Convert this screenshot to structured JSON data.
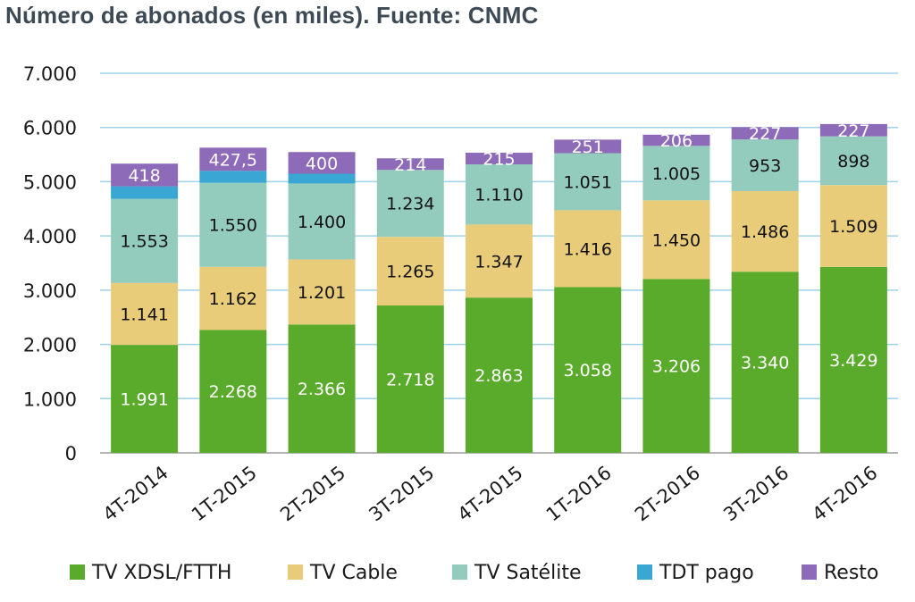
{
  "title": "Número de abonados (en miles). Fuente: CNMC",
  "chart_data": {
    "type": "bar",
    "stacked": true,
    "title": "Número de abonados (en miles). Fuente: CNMC",
    "xlabel": "",
    "ylabel": "",
    "ylim": [
      0,
      7000
    ],
    "yticks": [
      0,
      1000,
      2000,
      3000,
      4000,
      5000,
      6000,
      7000
    ],
    "ytick_labels": [
      "0",
      "1.000",
      "2.000",
      "3.000",
      "4.000",
      "5.000",
      "6.000",
      "7.000"
    ],
    "grid": true,
    "legend_position": "bottom",
    "categories": [
      "4T-2014",
      "1T-2015",
      "2T-2015",
      "3T-2015",
      "4T-2015",
      "1T-2016",
      "2T-2016",
      "3T-2016",
      "4T-2016"
    ],
    "series": [
      {
        "name": "TV XDSL/FTTH",
        "color": "#5aab2c",
        "values": [
          1991,
          2268,
          2366,
          2718,
          2863,
          3058,
          3206,
          3340,
          3429
        ],
        "labels": [
          "1.991",
          "2.268",
          "2.366",
          "2.718",
          "2.863",
          "3.058",
          "3.206",
          "3.340",
          "3.429"
        ],
        "label_color": "#ffffff"
      },
      {
        "name": "TV Cable",
        "color": "#e9cc7a",
        "values": [
          1141,
          1162,
          1201,
          1265,
          1347,
          1416,
          1450,
          1486,
          1509
        ],
        "labels": [
          "1.141",
          "1.162",
          "1.201",
          "1.265",
          "1.347",
          "1.416",
          "1.450",
          "1.486",
          "1.509"
        ],
        "label_color": "#111111"
      },
      {
        "name": "TV Satélite",
        "color": "#93cbbd",
        "values": [
          1553,
          1550,
          1400,
          1234,
          1110,
          1051,
          1005,
          953,
          898
        ],
        "labels": [
          "1.553",
          "1.550",
          "1.400",
          "1.234",
          "1.110",
          "1.051",
          "1.005",
          "953",
          "898"
        ],
        "label_color": "#111111"
      },
      {
        "name": "TDT pago",
        "color": "#3aa6d4",
        "values": [
          230,
          220,
          180,
          0,
          0,
          0,
          0,
          0,
          0
        ],
        "labels": [
          "",
          "",
          "",
          "",
          "",
          "",
          "",
          "",
          ""
        ],
        "label_color": "#111111"
      },
      {
        "name": "Resto",
        "color": "#8e6bb8",
        "values": [
          418,
          427.5,
          400,
          214,
          215,
          251,
          206,
          227,
          227
        ],
        "labels": [
          "418",
          "427,5",
          "400",
          "214",
          "215",
          "251",
          "206",
          "227",
          "227"
        ],
        "label_color": "#ffffff"
      }
    ]
  }
}
